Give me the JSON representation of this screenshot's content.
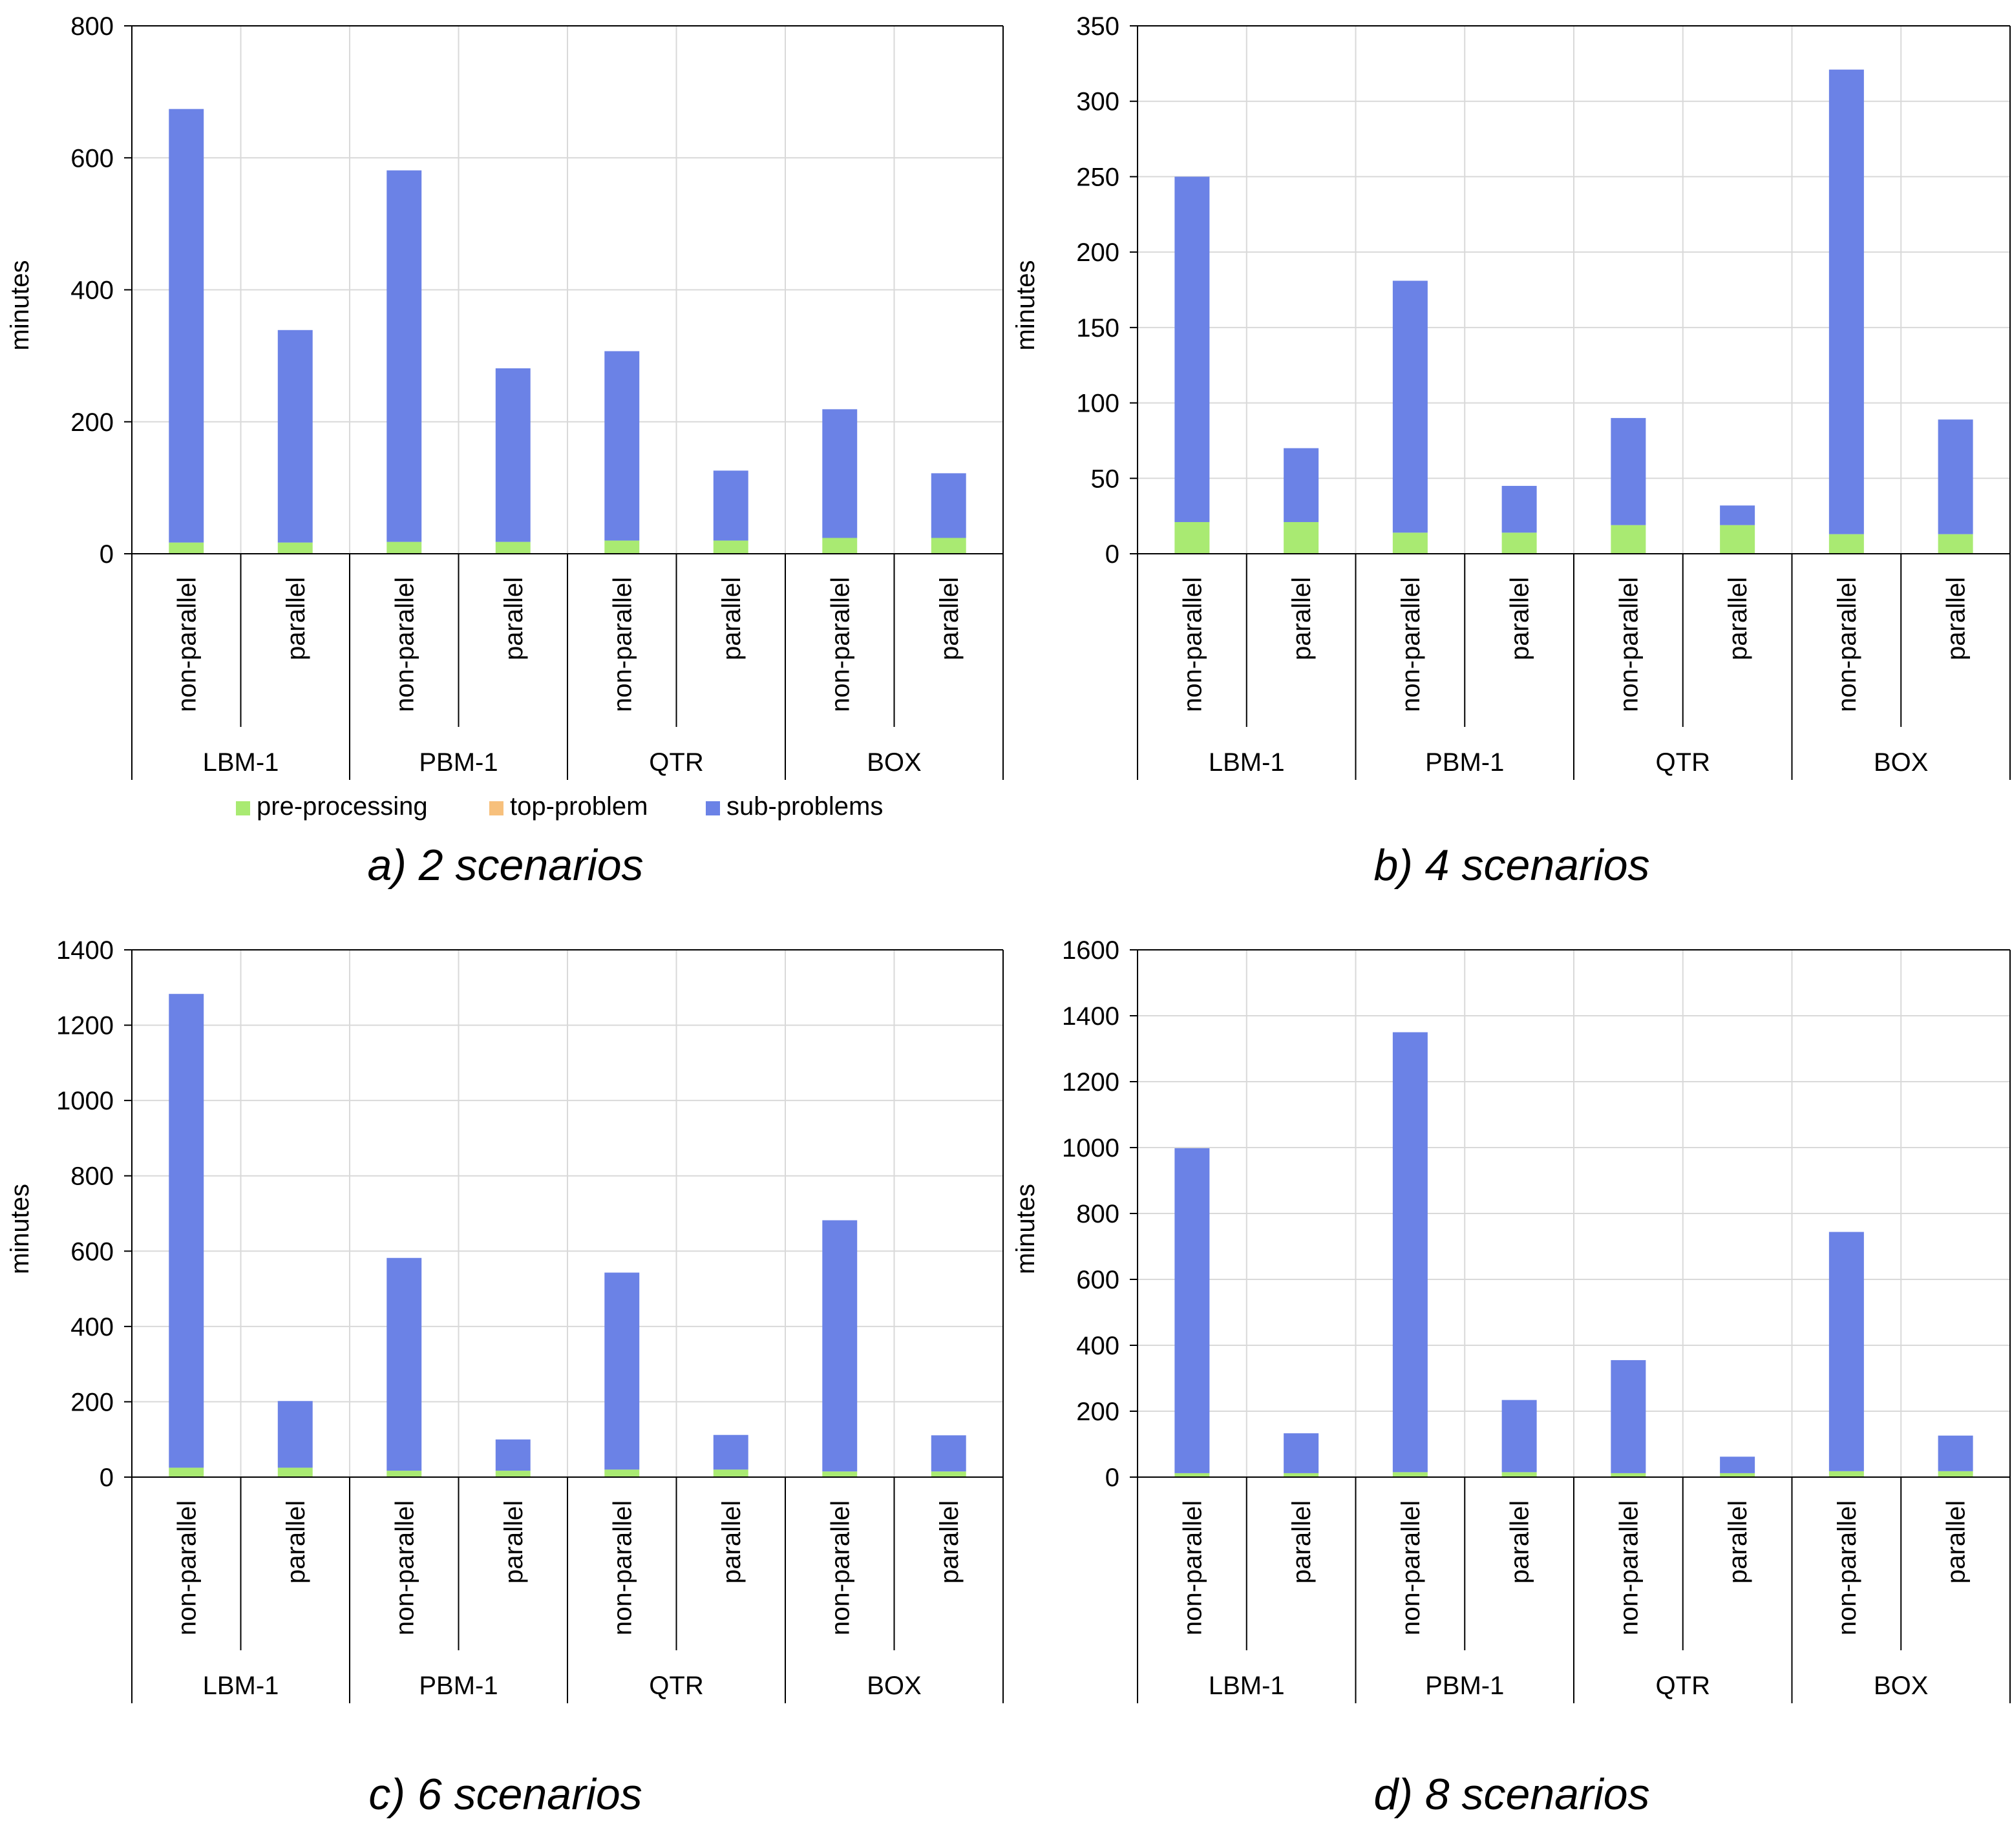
{
  "colors": {
    "pre_processing": "#a9ea72",
    "top_problem": "#f7c07c",
    "sub_problems": "#6b82e6",
    "gridline": "#d9d9d9",
    "axis": "#000000"
  },
  "legend": {
    "placement": "bottom-center",
    "items": [
      "pre-processing",
      "top-problem",
      "sub-problems"
    ]
  },
  "chart_data": [
    {
      "type": "bar",
      "stacked": true,
      "caption": "a) 2 scenarios",
      "ylabel": "minutes",
      "ylim": [
        0,
        800
      ],
      "yticks": [
        0,
        200,
        400,
        600,
        800
      ],
      "groups": [
        "LBM-1",
        "PBM-1",
        "QTR",
        "BOX"
      ],
      "categories": [
        "non-parallel",
        "parallel",
        "non-parallel",
        "parallel",
        "non-parallel",
        "parallel",
        "non-parallel",
        "parallel"
      ],
      "series": [
        {
          "name": "pre-processing",
          "values": [
            17,
            17,
            18,
            18,
            20,
            20,
            24,
            24
          ]
        },
        {
          "name": "top-problem",
          "values": [
            0,
            0,
            0,
            0,
            0,
            0,
            0,
            0
          ]
        },
        {
          "name": "sub-problems",
          "values": [
            657,
            322,
            563,
            263,
            287,
            106,
            195,
            98
          ]
        }
      ],
      "grid": true
    },
    {
      "type": "bar",
      "stacked": true,
      "caption": "b) 4 scenarios",
      "ylabel": "minutes",
      "ylim": [
        0,
        350
      ],
      "yticks": [
        0,
        50,
        100,
        150,
        200,
        250,
        300,
        350
      ],
      "groups": [
        "LBM-1",
        "PBM-1",
        "QTR",
        "BOX"
      ],
      "categories": [
        "non-parallel",
        "parallel",
        "non-parallel",
        "parallel",
        "non-parallel",
        "parallel",
        "non-parallel",
        "parallel"
      ],
      "series": [
        {
          "name": "pre-processing",
          "values": [
            21,
            21,
            14,
            14,
            19,
            19,
            13,
            13
          ]
        },
        {
          "name": "top-problem",
          "values": [
            0,
            0,
            0,
            0,
            0,
            0,
            0,
            0
          ]
        },
        {
          "name": "sub-problems",
          "values": [
            229,
            49,
            167,
            31,
            71,
            13,
            308,
            76
          ]
        }
      ],
      "grid": true
    },
    {
      "type": "bar",
      "stacked": true,
      "caption": "c) 6 scenarios",
      "ylabel": "minutes",
      "ylim": [
        0,
        1400
      ],
      "yticks": [
        0,
        200,
        400,
        600,
        800,
        1000,
        1200,
        1400
      ],
      "groups": [
        "LBM-1",
        "PBM-1",
        "QTR",
        "BOX"
      ],
      "categories": [
        "non-parallel",
        "parallel",
        "non-parallel",
        "parallel",
        "non-parallel",
        "parallel",
        "non-parallel",
        "parallel"
      ],
      "series": [
        {
          "name": "pre-processing",
          "values": [
            25,
            25,
            17,
            17,
            20,
            20,
            15,
            15
          ]
        },
        {
          "name": "top-problem",
          "values": [
            0,
            0,
            0,
            0,
            0,
            0,
            0,
            0
          ]
        },
        {
          "name": "sub-problems",
          "values": [
            1258,
            177,
            565,
            83,
            523,
            92,
            667,
            96
          ]
        }
      ],
      "grid": true
    },
    {
      "type": "bar",
      "stacked": true,
      "caption": "d) 8 scenarios",
      "ylabel": "minutes",
      "ylim": [
        0,
        1600
      ],
      "yticks": [
        0,
        200,
        400,
        600,
        800,
        1000,
        1200,
        1400,
        1600
      ],
      "groups": [
        "LBM-1",
        "PBM-1",
        "QTR",
        "BOX"
      ],
      "categories": [
        "non-parallel",
        "parallel",
        "non-parallel",
        "parallel",
        "non-parallel",
        "parallel",
        "non-parallel",
        "parallel"
      ],
      "series": [
        {
          "name": "pre-processing",
          "values": [
            12,
            12,
            15,
            15,
            12,
            12,
            18,
            18
          ]
        },
        {
          "name": "top-problem",
          "values": [
            0,
            0,
            0,
            0,
            0,
            0,
            0,
            0
          ]
        },
        {
          "name": "sub-problems",
          "values": [
            986,
            121,
            1335,
            219,
            343,
            50,
            726,
            108
          ]
        }
      ],
      "grid": true
    }
  ]
}
